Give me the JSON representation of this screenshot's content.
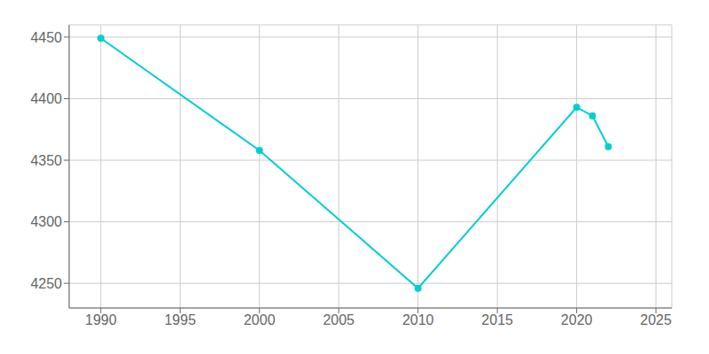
{
  "chart_data": {
    "type": "line",
    "x": [
      1990,
      2000,
      2010,
      2020,
      2021,
      2022
    ],
    "values": [
      4449,
      4358,
      4246,
      4393,
      4386,
      4361
    ],
    "color": "#00CED1",
    "marker": "circle",
    "xlim": [
      1988,
      2026
    ],
    "ylim": [
      4230,
      4460
    ],
    "xticks": [
      1990,
      1995,
      2000,
      2005,
      2010,
      2015,
      2020,
      2025
    ],
    "yticks": [
      4250,
      4300,
      4350,
      4400,
      4450
    ],
    "grid": true
  }
}
